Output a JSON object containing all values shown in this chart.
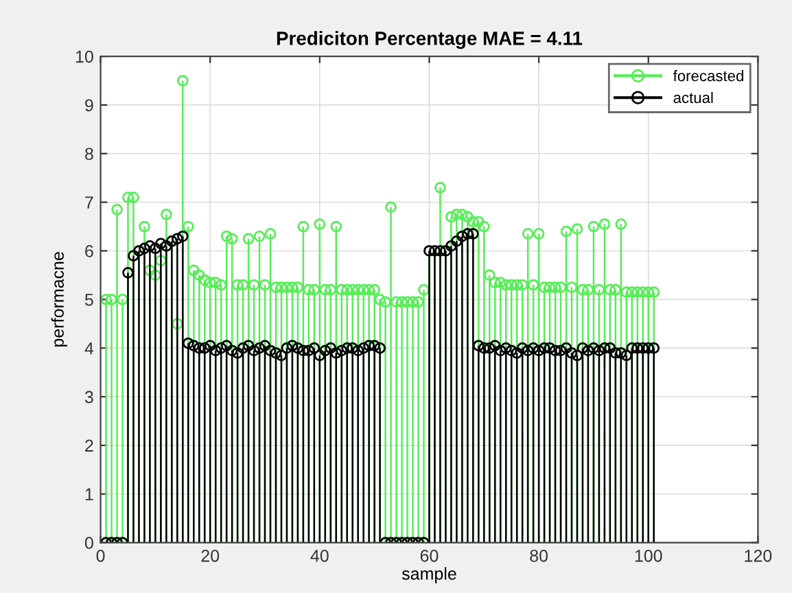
{
  "chart_data": {
    "type": "lollipop",
    "title": "Prediciton Percentage MAE = 4.11",
    "xlabel": "sample",
    "ylabel": "performacne",
    "x": [
      1,
      2,
      3,
      4,
      5,
      6,
      7,
      8,
      9,
      10,
      11,
      12,
      13,
      14,
      15,
      16,
      17,
      18,
      19,
      20,
      21,
      22,
      23,
      24,
      25,
      26,
      27,
      28,
      29,
      30,
      31,
      32,
      33,
      34,
      35,
      36,
      37,
      38,
      39,
      40,
      41,
      42,
      43,
      44,
      45,
      46,
      47,
      48,
      49,
      50,
      51,
      52,
      53,
      54,
      55,
      56,
      57,
      58,
      59,
      60,
      61,
      62,
      63,
      64,
      65,
      66,
      67,
      68,
      69,
      70,
      71,
      72,
      73,
      74,
      75,
      76,
      77,
      78,
      79,
      80,
      81,
      82,
      83,
      84,
      85,
      86,
      87,
      88,
      89,
      90,
      91,
      92,
      93,
      94,
      95,
      96,
      97,
      98,
      99,
      100,
      101
    ],
    "series": [
      {
        "name": "forecasted",
        "color": "#55ee55",
        "values": [
          5.0,
          5.0,
          6.85,
          5.0,
          7.1,
          7.1,
          6.0,
          6.5,
          5.6,
          5.5,
          5.8,
          6.75,
          6.2,
          4.5,
          9.5,
          6.5,
          5.6,
          5.5,
          5.4,
          5.35,
          5.35,
          5.3,
          6.3,
          6.25,
          5.3,
          5.3,
          6.25,
          5.3,
          6.3,
          5.3,
          6.35,
          5.25,
          5.25,
          5.25,
          5.25,
          5.25,
          6.5,
          5.2,
          5.2,
          6.55,
          5.2,
          5.2,
          6.5,
          5.2,
          5.2,
          5.2,
          5.2,
          5.2,
          5.2,
          5.2,
          5.0,
          4.95,
          6.9,
          4.95,
          4.95,
          4.95,
          4.95,
          4.95,
          5.2,
          6.0,
          6.0,
          7.3,
          6.0,
          6.7,
          6.75,
          6.75,
          6.7,
          6.6,
          6.6,
          6.5,
          5.5,
          5.35,
          5.35,
          5.3,
          5.3,
          5.3,
          5.3,
          6.35,
          5.3,
          6.35,
          5.25,
          5.25,
          5.25,
          5.25,
          6.4,
          5.25,
          6.45,
          5.2,
          5.2,
          6.5,
          5.2,
          6.55,
          5.2,
          5.2,
          6.55,
          5.15,
          5.15,
          5.15,
          5.15,
          5.15,
          5.15
        ]
      },
      {
        "name": "actual",
        "color": "#000000",
        "values": [
          0,
          0,
          0,
          0,
          5.55,
          5.9,
          6.0,
          6.05,
          6.1,
          6.05,
          6.15,
          6.1,
          6.2,
          6.25,
          6.3,
          4.1,
          4.05,
          4.0,
          4.0,
          4.05,
          3.95,
          4.0,
          4.05,
          3.95,
          3.9,
          4.0,
          4.05,
          3.95,
          4.0,
          4.05,
          3.95,
          3.9,
          3.85,
          4.0,
          4.05,
          4.0,
          3.95,
          3.95,
          4.0,
          3.85,
          3.95,
          4.0,
          3.9,
          3.95,
          4.0,
          4.0,
          3.95,
          4.0,
          4.05,
          4.05,
          4.0,
          0,
          0,
          0,
          0,
          0,
          0,
          0,
          0,
          6.0,
          6.0,
          6.0,
          6.0,
          6.1,
          6.2,
          6.3,
          6.35,
          6.35,
          4.05,
          4.0,
          4.0,
          4.05,
          3.95,
          4.0,
          3.95,
          3.9,
          4.0,
          3.95,
          4.0,
          3.95,
          4.0,
          4.0,
          3.95,
          3.95,
          4.0,
          3.9,
          3.85,
          4.0,
          3.95,
          4.0,
          3.95,
          4.0,
          4.0,
          3.9,
          3.9,
          3.85,
          4.0,
          4.0,
          4.0,
          4.0,
          4.0
        ]
      }
    ],
    "xlim": [
      0,
      120
    ],
    "xticks": [
      0,
      20,
      40,
      60,
      80,
      100,
      120
    ],
    "ylim": [
      0,
      10
    ],
    "yticks": [
      0,
      1,
      2,
      3,
      4,
      5,
      6,
      7,
      8,
      9,
      10
    ],
    "grid": true,
    "legend": "top right",
    "marker": "circle"
  }
}
